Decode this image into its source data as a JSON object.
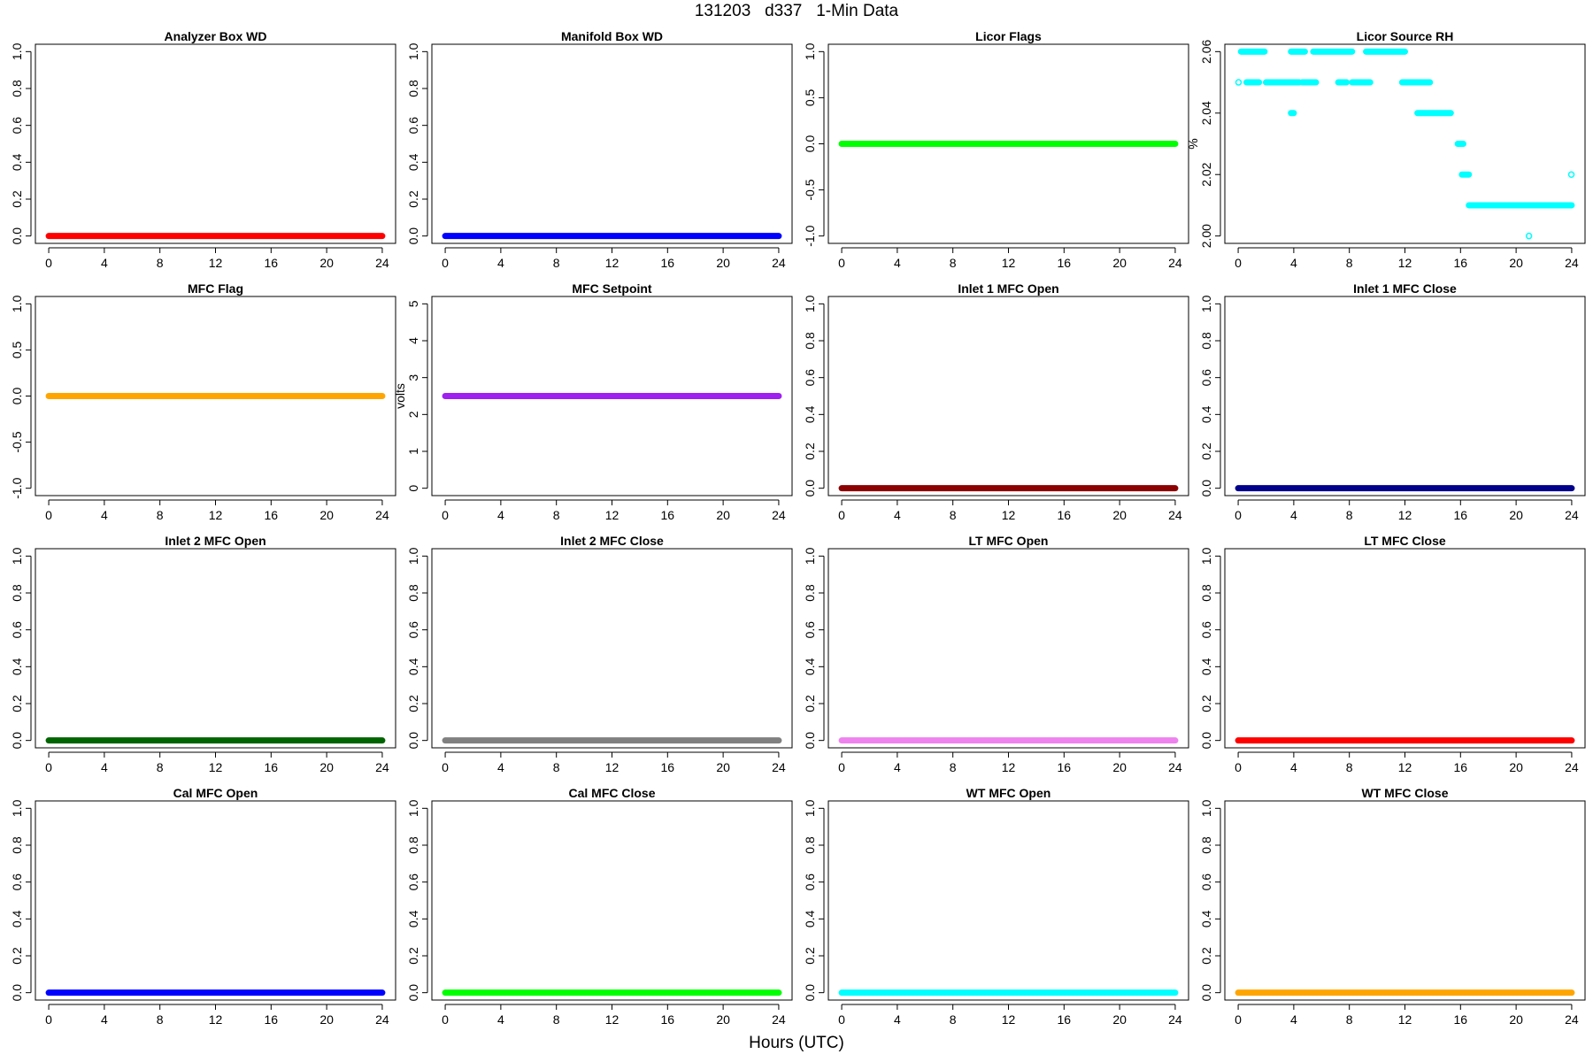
{
  "figure": {
    "title": "131203   d337   1-Min Data",
    "xlabel": "Hours (UTC)"
  },
  "chart_data": [
    {
      "type": "scatter",
      "title": "Analyzer Box WD",
      "ylabel": "",
      "xlim": [
        0,
        24
      ],
      "ylim": [
        0,
        1
      ],
      "xticks": [
        0,
        4,
        8,
        12,
        16,
        20,
        24
      ],
      "yticks": [
        "0.0",
        "0.2",
        "0.4",
        "0.6",
        "0.8",
        "1.0"
      ],
      "color": "#ff0000",
      "series": [
        {
          "x_range": [
            0,
            24
          ],
          "value": 0
        }
      ],
      "grid": false
    },
    {
      "type": "scatter",
      "title": "Manifold Box WD",
      "ylabel": "",
      "xlim": [
        0,
        24
      ],
      "ylim": [
        0,
        1
      ],
      "xticks": [
        0,
        4,
        8,
        12,
        16,
        20,
        24
      ],
      "yticks": [
        "0.0",
        "0.2",
        "0.4",
        "0.6",
        "0.8",
        "1.0"
      ],
      "color": "#0000ff",
      "series": [
        {
          "x_range": [
            0,
            24
          ],
          "value": 0
        }
      ],
      "grid": false
    },
    {
      "type": "scatter",
      "title": "Licor Flags",
      "ylabel": "",
      "xlim": [
        0,
        24
      ],
      "ylim": [
        -1,
        1
      ],
      "xticks": [
        0,
        4,
        8,
        12,
        16,
        20,
        24
      ],
      "yticks": [
        "-1.0",
        "-0.5",
        "0.0",
        "0.5",
        "1.0"
      ],
      "color": "#00ff00",
      "series": [
        {
          "x_range": [
            0,
            24
          ],
          "value": 0
        }
      ],
      "grid": false
    },
    {
      "type": "scatter",
      "title": "Licor Source RH",
      "ylabel": "%",
      "xlim": [
        0,
        24
      ],
      "ylim": [
        2.0,
        2.06
      ],
      "xticks": [
        0,
        4,
        8,
        12,
        16,
        20,
        24
      ],
      "yticks": [
        "2.00",
        "2.02",
        "2.04",
        "2.06"
      ],
      "color": "#00ffff",
      "segments": [
        {
          "x0": 0.2,
          "x1": 1.9,
          "y": 2.06
        },
        {
          "x0": 3.8,
          "x1": 4.8,
          "y": 2.06
        },
        {
          "x0": 5.4,
          "x1": 8.2,
          "y": 2.06
        },
        {
          "x0": 9.2,
          "x1": 12.0,
          "y": 2.06
        },
        {
          "x0": 0.0,
          "x1": 0.05,
          "y": 2.05
        },
        {
          "x0": 0.6,
          "x1": 1.5,
          "y": 2.05
        },
        {
          "x0": 2.0,
          "x1": 4.4,
          "y": 2.05
        },
        {
          "x0": 4.6,
          "x1": 5.6,
          "y": 2.05
        },
        {
          "x0": 7.2,
          "x1": 7.8,
          "y": 2.05
        },
        {
          "x0": 8.2,
          "x1": 9.5,
          "y": 2.05
        },
        {
          "x0": 11.8,
          "x1": 13.8,
          "y": 2.05
        },
        {
          "x0": 3.8,
          "x1": 4.0,
          "y": 2.04
        },
        {
          "x0": 12.9,
          "x1": 15.3,
          "y": 2.04
        },
        {
          "x0": 15.8,
          "x1": 16.2,
          "y": 2.03
        },
        {
          "x0": 16.1,
          "x1": 16.6,
          "y": 2.02
        },
        {
          "x0": 16.6,
          "x1": 24.0,
          "y": 2.01
        },
        {
          "x0": 20.9,
          "x1": 20.95,
          "y": 2.0
        },
        {
          "x0": 23.95,
          "x1": 24.0,
          "y": 2.02
        }
      ],
      "grid": false
    },
    {
      "type": "scatter",
      "title": "MFC Flag",
      "ylabel": "",
      "xlim": [
        0,
        24
      ],
      "ylim": [
        -1,
        1
      ],
      "xticks": [
        0,
        4,
        8,
        12,
        16,
        20,
        24
      ],
      "yticks": [
        "-1.0",
        "-0.5",
        "0.0",
        "0.5",
        "1.0"
      ],
      "color": "#ffa500",
      "series": [
        {
          "x_range": [
            0,
            24
          ],
          "value": 0
        }
      ],
      "grid": false
    },
    {
      "type": "scatter",
      "title": "MFC Setpoint",
      "ylabel": "volts",
      "xlim": [
        0,
        24
      ],
      "ylim": [
        0,
        5
      ],
      "xticks": [
        0,
        4,
        8,
        12,
        16,
        20,
        24
      ],
      "yticks": [
        "0",
        "1",
        "2",
        "3",
        "4",
        "5"
      ],
      "color": "#a020f0",
      "series": [
        {
          "x_range": [
            0,
            24
          ],
          "value": 2.5
        }
      ],
      "grid": false
    },
    {
      "type": "scatter",
      "title": "Inlet 1 MFC Open",
      "ylabel": "",
      "xlim": [
        0,
        24
      ],
      "ylim": [
        0,
        1
      ],
      "xticks": [
        0,
        4,
        8,
        12,
        16,
        20,
        24
      ],
      "yticks": [
        "0.0",
        "0.2",
        "0.4",
        "0.6",
        "0.8",
        "1.0"
      ],
      "color": "#8b0000",
      "series": [
        {
          "x_range": [
            0,
            24
          ],
          "value": 0
        }
      ],
      "grid": false
    },
    {
      "type": "scatter",
      "title": "Inlet 1 MFC Close",
      "ylabel": "",
      "xlim": [
        0,
        24
      ],
      "ylim": [
        0,
        1
      ],
      "xticks": [
        0,
        4,
        8,
        12,
        16,
        20,
        24
      ],
      "yticks": [
        "0.0",
        "0.2",
        "0.4",
        "0.6",
        "0.8",
        "1.0"
      ],
      "color": "#00008b",
      "series": [
        {
          "x_range": [
            0,
            24
          ],
          "value": 0
        }
      ],
      "grid": false
    },
    {
      "type": "scatter",
      "title": "Inlet 2 MFC Open",
      "ylabel": "",
      "xlim": [
        0,
        24
      ],
      "ylim": [
        0,
        1
      ],
      "xticks": [
        0,
        4,
        8,
        12,
        16,
        20,
        24
      ],
      "yticks": [
        "0.0",
        "0.2",
        "0.4",
        "0.6",
        "0.8",
        "1.0"
      ],
      "color": "#006400",
      "series": [
        {
          "x_range": [
            0,
            24
          ],
          "value": 0
        }
      ],
      "grid": false
    },
    {
      "type": "scatter",
      "title": "Inlet 2 MFC Close",
      "ylabel": "",
      "xlim": [
        0,
        24
      ],
      "ylim": [
        0,
        1
      ],
      "xticks": [
        0,
        4,
        8,
        12,
        16,
        20,
        24
      ],
      "yticks": [
        "0.0",
        "0.2",
        "0.4",
        "0.6",
        "0.8",
        "1.0"
      ],
      "color": "#808080",
      "series": [
        {
          "x_range": [
            0,
            24
          ],
          "value": 0
        }
      ],
      "grid": false
    },
    {
      "type": "scatter",
      "title": "LT MFC Open",
      "ylabel": "",
      "xlim": [
        0,
        24
      ],
      "ylim": [
        0,
        1
      ],
      "xticks": [
        0,
        4,
        8,
        12,
        16,
        20,
        24
      ],
      "yticks": [
        "0.0",
        "0.2",
        "0.4",
        "0.6",
        "0.8",
        "1.0"
      ],
      "color": "#ee82ee",
      "series": [
        {
          "x_range": [
            0,
            24
          ],
          "value": 0
        }
      ],
      "grid": false
    },
    {
      "type": "scatter",
      "title": "LT MFC Close",
      "ylabel": "",
      "xlim": [
        0,
        24
      ],
      "ylim": [
        0,
        1
      ],
      "xticks": [
        0,
        4,
        8,
        12,
        16,
        20,
        24
      ],
      "yticks": [
        "0.0",
        "0.2",
        "0.4",
        "0.6",
        "0.8",
        "1.0"
      ],
      "color": "#ff0000",
      "series": [
        {
          "x_range": [
            0,
            24
          ],
          "value": 0
        }
      ],
      "grid": false
    },
    {
      "type": "scatter",
      "title": "Cal MFC Open",
      "ylabel": "",
      "xlim": [
        0,
        24
      ],
      "ylim": [
        0,
        1
      ],
      "xticks": [
        0,
        4,
        8,
        12,
        16,
        20,
        24
      ],
      "yticks": [
        "0.0",
        "0.2",
        "0.4",
        "0.6",
        "0.8",
        "1.0"
      ],
      "color": "#0000ff",
      "series": [
        {
          "x_range": [
            0,
            24
          ],
          "value": 0
        }
      ],
      "grid": false
    },
    {
      "type": "scatter",
      "title": "Cal MFC Close",
      "ylabel": "",
      "xlim": [
        0,
        24
      ],
      "ylim": [
        0,
        1
      ],
      "xticks": [
        0,
        4,
        8,
        12,
        16,
        20,
        24
      ],
      "yticks": [
        "0.0",
        "0.2",
        "0.4",
        "0.6",
        "0.8",
        "1.0"
      ],
      "color": "#00ff00",
      "series": [
        {
          "x_range": [
            0,
            24
          ],
          "value": 0
        }
      ],
      "grid": false
    },
    {
      "type": "scatter",
      "title": "WT MFC Open",
      "ylabel": "",
      "xlim": [
        0,
        24
      ],
      "ylim": [
        0,
        1
      ],
      "xticks": [
        0,
        4,
        8,
        12,
        16,
        20,
        24
      ],
      "yticks": [
        "0.0",
        "0.2",
        "0.4",
        "0.6",
        "0.8",
        "1.0"
      ],
      "color": "#00ffff",
      "series": [
        {
          "x_range": [
            0,
            24
          ],
          "value": 0
        }
      ],
      "grid": false
    },
    {
      "type": "scatter",
      "title": "WT MFC Close",
      "ylabel": "",
      "xlim": [
        0,
        24
      ],
      "ylim": [
        0,
        1
      ],
      "xticks": [
        0,
        4,
        8,
        12,
        16,
        20,
        24
      ],
      "yticks": [
        "0.0",
        "0.2",
        "0.4",
        "0.6",
        "0.8",
        "1.0"
      ],
      "color": "#ffa500",
      "series": [
        {
          "x_range": [
            0,
            24
          ],
          "value": 0
        }
      ],
      "grid": false
    }
  ]
}
